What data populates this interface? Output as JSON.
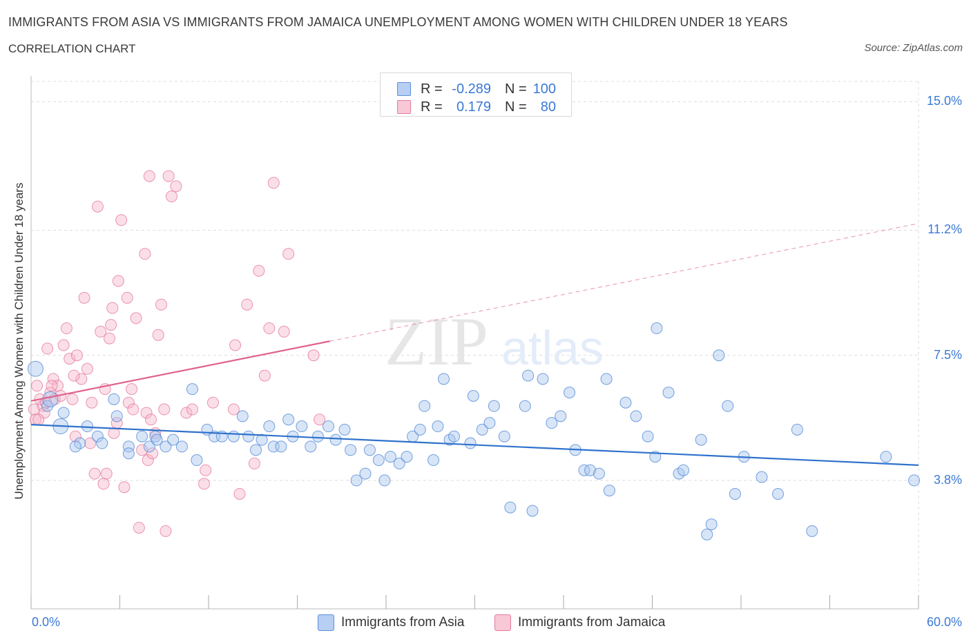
{
  "title": "IMMIGRANTS FROM ASIA VS IMMIGRANTS FROM JAMAICA UNEMPLOYMENT AMONG WOMEN WITH CHILDREN UNDER 18 YEARS",
  "subtitle": "CORRELATION CHART",
  "source": "Source: ZipAtlas.com",
  "watermark": {
    "zip": "ZIP",
    "atlas": "atlas"
  },
  "colors": {
    "asia_fill": "#a9c6ee",
    "asia_stroke": "#5b8fd9",
    "asia_line": "#2f72cc",
    "jamaica_fill": "#f6b9cb",
    "jamaica_stroke": "#e67a9c",
    "jamaica_line": "#e0628c",
    "grid": "#dcdcdc",
    "tick_text": "#3a78d6"
  },
  "legend_top": {
    "rows": [
      {
        "r_label": "R =",
        "r_value": "-0.289",
        "n_label": "N =",
        "n_value": "100"
      },
      {
        "r_label": "R =",
        "r_value": "0.179",
        "n_label": "N =",
        "n_value": "80"
      }
    ]
  },
  "legend_bottom": [
    {
      "label": "Immigrants from Asia"
    },
    {
      "label": "Immigrants from Jamaica"
    }
  ],
  "chart_data": {
    "type": "scatter",
    "ylabel": "Unemployment Among Women with Children Under 18 years",
    "xlim": [
      0,
      60
    ],
    "ylim": [
      0,
      15.6
    ],
    "x_tick_labels": [
      "0.0%",
      "60.0%"
    ],
    "y_ticks": [
      3.8,
      7.5,
      11.2,
      15.0
    ],
    "y_tick_labels": [
      "3.8%",
      "7.5%",
      "11.2%",
      "15.0%"
    ],
    "grid": true,
    "series": [
      {
        "name": "Immigrants from Asia",
        "trend": {
          "x": [
            0,
            60
          ],
          "y": [
            5.45,
            4.25
          ],
          "dashed_from": null
        },
        "points": [
          [
            0.3,
            7.1
          ],
          [
            1.1,
            6.0
          ],
          [
            1.3,
            6.2
          ],
          [
            2.2,
            5.8
          ],
          [
            2.0,
            5.4
          ],
          [
            3.8,
            5.4
          ],
          [
            3.3,
            4.9
          ],
          [
            4.5,
            5.1
          ],
          [
            4.8,
            4.9
          ],
          [
            5.6,
            6.2
          ],
          [
            5.8,
            5.7
          ],
          [
            6.6,
            4.8
          ],
          [
            6.6,
            4.6
          ],
          [
            7.5,
            5.1
          ],
          [
            8.0,
            4.8
          ],
          [
            8.4,
            5.1
          ],
          [
            9.1,
            4.8
          ],
          [
            9.6,
            5.0
          ],
          [
            10.2,
            4.8
          ],
          [
            10.9,
            6.5
          ],
          [
            11.2,
            4.4
          ],
          [
            11.9,
            5.3
          ],
          [
            12.4,
            5.1
          ],
          [
            12.9,
            5.1
          ],
          [
            13.7,
            5.1
          ],
          [
            14.3,
            5.7
          ],
          [
            14.7,
            5.1
          ],
          [
            15.2,
            4.7
          ],
          [
            15.6,
            5.0
          ],
          [
            16.1,
            5.4
          ],
          [
            16.4,
            4.8
          ],
          [
            16.9,
            4.8
          ],
          [
            17.4,
            5.6
          ],
          [
            17.7,
            5.1
          ],
          [
            18.3,
            5.4
          ],
          [
            18.9,
            4.8
          ],
          [
            19.4,
            5.1
          ],
          [
            20.1,
            5.4
          ],
          [
            20.6,
            5.0
          ],
          [
            21.2,
            5.3
          ],
          [
            21.6,
            4.7
          ],
          [
            22.0,
            3.8
          ],
          [
            22.6,
            4.0
          ],
          [
            22.9,
            4.7
          ],
          [
            23.5,
            4.4
          ],
          [
            23.9,
            3.8
          ],
          [
            24.3,
            4.5
          ],
          [
            24.9,
            4.3
          ],
          [
            25.4,
            4.5
          ],
          [
            25.8,
            5.1
          ],
          [
            26.3,
            5.3
          ],
          [
            26.6,
            6.0
          ],
          [
            27.2,
            4.4
          ],
          [
            27.5,
            5.4
          ],
          [
            28.3,
            5.0
          ],
          [
            27.9,
            6.8
          ],
          [
            28.6,
            5.1
          ],
          [
            29.7,
            4.9
          ],
          [
            29.9,
            6.3
          ],
          [
            30.5,
            5.3
          ],
          [
            31.0,
            5.5
          ],
          [
            31.3,
            6.0
          ],
          [
            32.0,
            5.1
          ],
          [
            32.4,
            3.0
          ],
          [
            33.4,
            6.0
          ],
          [
            33.9,
            2.9
          ],
          [
            33.6,
            6.9
          ],
          [
            34.6,
            6.8
          ],
          [
            35.2,
            5.5
          ],
          [
            35.8,
            5.7
          ],
          [
            36.4,
            6.4
          ],
          [
            36.8,
            4.7
          ],
          [
            37.4,
            4.1
          ],
          [
            37.8,
            4.1
          ],
          [
            38.4,
            4.0
          ],
          [
            38.9,
            6.8
          ],
          [
            39.1,
            3.5
          ],
          [
            40.2,
            6.1
          ],
          [
            40.9,
            5.7
          ],
          [
            41.7,
            5.1
          ],
          [
            42.2,
            4.5
          ],
          [
            42.3,
            8.3
          ],
          [
            43.1,
            6.4
          ],
          [
            43.8,
            4.0
          ],
          [
            44.1,
            4.1
          ],
          [
            45.3,
            5.0
          ],
          [
            45.7,
            2.2
          ],
          [
            46.0,
            2.5
          ],
          [
            46.5,
            7.5
          ],
          [
            47.1,
            6.0
          ],
          [
            47.6,
            3.4
          ],
          [
            48.2,
            4.5
          ],
          [
            49.4,
            3.9
          ],
          [
            50.5,
            3.4
          ],
          [
            51.8,
            5.3
          ],
          [
            52.8,
            2.3
          ],
          [
            57.8,
            4.5
          ],
          [
            59.7,
            3.8
          ],
          [
            8.5,
            5.0
          ],
          [
            3.0,
            4.8
          ]
        ]
      },
      {
        "name": "Immigrants from Jamaica",
        "trend": {
          "x": [
            0,
            60
          ],
          "y": [
            6.15,
            11.4
          ],
          "dashed_from": 20.2
        },
        "points": [
          [
            0.2,
            5.9
          ],
          [
            0.3,
            5.6
          ],
          [
            0.4,
            6.6
          ],
          [
            0.6,
            6.2
          ],
          [
            0.8,
            6.0
          ],
          [
            0.9,
            5.8
          ],
          [
            1.1,
            7.7
          ],
          [
            1.3,
            6.4
          ],
          [
            1.5,
            6.8
          ],
          [
            1.6,
            6.2
          ],
          [
            1.8,
            6.6
          ],
          [
            2.0,
            6.3
          ],
          [
            2.2,
            7.8
          ],
          [
            2.4,
            8.3
          ],
          [
            2.6,
            7.4
          ],
          [
            2.8,
            6.2
          ],
          [
            3.0,
            5.1
          ],
          [
            3.1,
            7.5
          ],
          [
            3.4,
            6.8
          ],
          [
            3.6,
            9.2
          ],
          [
            3.8,
            7.1
          ],
          [
            4.1,
            6.1
          ],
          [
            4.3,
            4.0
          ],
          [
            4.5,
            11.9
          ],
          [
            4.7,
            8.2
          ],
          [
            4.9,
            3.7
          ],
          [
            5.1,
            4.0
          ],
          [
            5.3,
            8.0
          ],
          [
            5.4,
            8.4
          ],
          [
            5.6,
            5.2
          ],
          [
            5.8,
            5.5
          ],
          [
            5.9,
            9.7
          ],
          [
            6.1,
            11.5
          ],
          [
            6.3,
            3.6
          ],
          [
            6.5,
            9.2
          ],
          [
            6.6,
            6.1
          ],
          [
            6.8,
            6.5
          ],
          [
            7.1,
            8.6
          ],
          [
            7.3,
            2.4
          ],
          [
            7.5,
            4.7
          ],
          [
            7.7,
            10.5
          ],
          [
            7.8,
            5.8
          ],
          [
            7.9,
            4.4
          ],
          [
            8.0,
            12.8
          ],
          [
            8.2,
            4.6
          ],
          [
            8.4,
            5.2
          ],
          [
            8.6,
            8.1
          ],
          [
            8.8,
            9.0
          ],
          [
            9.1,
            2.3
          ],
          [
            9.3,
            12.8
          ],
          [
            9.5,
            12.2
          ],
          [
            9.8,
            12.5
          ],
          [
            10.5,
            5.8
          ],
          [
            10.9,
            5.9
          ],
          [
            11.7,
            3.7
          ],
          [
            11.8,
            4.1
          ],
          [
            12.3,
            6.1
          ],
          [
            13.7,
            5.9
          ],
          [
            13.8,
            7.8
          ],
          [
            14.1,
            3.4
          ],
          [
            14.6,
            9.0
          ],
          [
            15.1,
            4.3
          ],
          [
            15.4,
            10.0
          ],
          [
            15.8,
            6.9
          ],
          [
            16.1,
            8.3
          ],
          [
            16.4,
            12.6
          ],
          [
            17.1,
            8.2
          ],
          [
            17.4,
            10.5
          ],
          [
            19.1,
            7.5
          ],
          [
            19.5,
            5.6
          ],
          [
            0.5,
            5.6
          ],
          [
            1.0,
            6.1
          ],
          [
            1.4,
            6.6
          ],
          [
            2.9,
            6.9
          ],
          [
            4.0,
            4.9
          ],
          [
            5.0,
            6.5
          ],
          [
            5.5,
            8.9
          ],
          [
            6.9,
            5.9
          ],
          [
            8.1,
            5.6
          ],
          [
            9.0,
            5.9
          ]
        ]
      }
    ]
  }
}
